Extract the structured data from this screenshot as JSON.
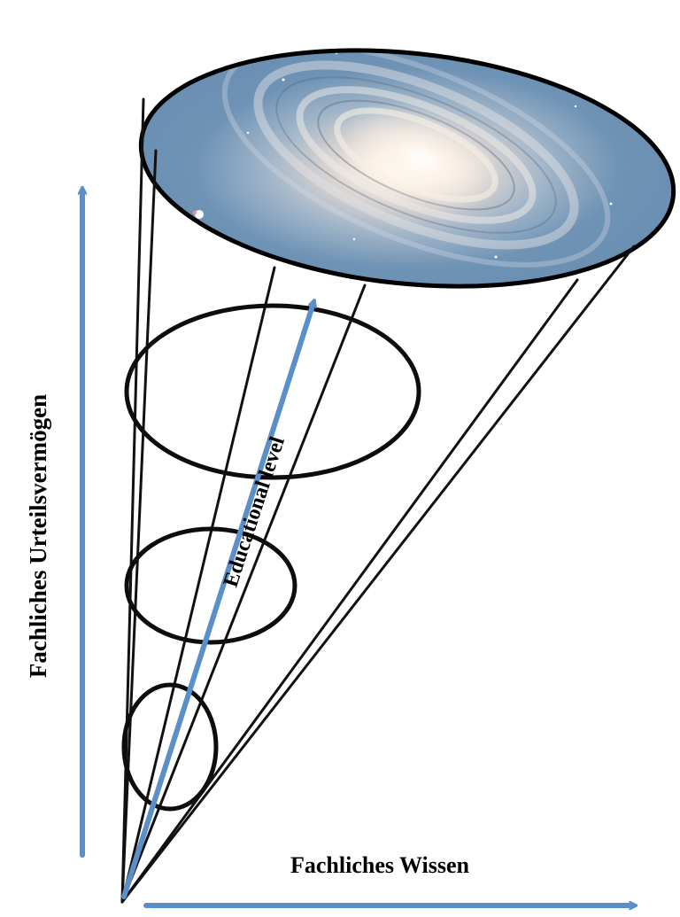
{
  "labels": {
    "y_axis": "Fachliches Urteilsvermögen",
    "x_axis": "Fachliches Wissen",
    "cone_axis": "Educational level"
  },
  "colors": {
    "arrow": "#5b8fc7",
    "outline": "#111111",
    "background": "#ffffff"
  },
  "image": {
    "cone_top": "spiral-galaxy"
  }
}
